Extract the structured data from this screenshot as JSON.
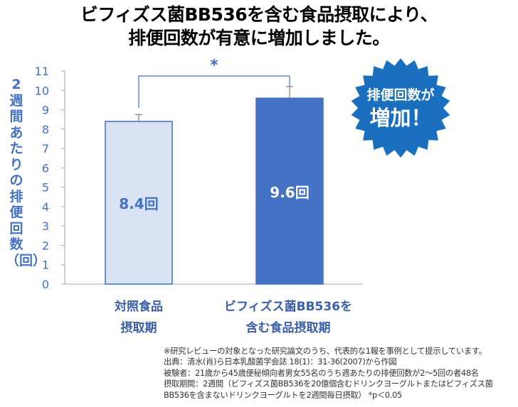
{
  "title_line1": "ビフィズス菌BB536を含む食品摂取により、",
  "title_line2": "排便回数が有意に増加しました。",
  "badge_line1": "排便回数が",
  "badge_line2": "増加！",
  "significance_mark": "*",
  "colors": {
    "control_fill": "#DAE3F3",
    "control_stroke": "#4472C4",
    "treatment_fill": "#4472C4",
    "badge": "#1A6FBF",
    "label_blue": "#4472C4",
    "axis": "#A6A6A6"
  },
  "chart_data": {
    "type": "bar",
    "categories": [
      "対照食品摂取期",
      "ビフィズス菌BB536を含む食品摂取期"
    ],
    "category_lines": [
      [
        "対照食品",
        "摂取期"
      ],
      [
        "ビフィズス菌BB536を",
        "含む食品摂取期"
      ]
    ],
    "values": [
      8.4,
      9.6
    ],
    "error_upper": [
      8.75,
      10.2
    ],
    "data_labels": [
      "8.4回",
      "9.6回"
    ],
    "ylabel": "2週間あたりの排便回数（回）",
    "ylim": [
      0,
      11
    ],
    "yticks": [
      0,
      1,
      2,
      3,
      4,
      5,
      6,
      7,
      8,
      9,
      10,
      11
    ],
    "grid": false
  },
  "notes": [
    "※研究レビューの対象となった研究論文のうち、代表的な1報を事例として提示しています。",
    "出典：清水(肖)ら日本乳酸菌学会誌 18(1)：31-36(2007)から作図",
    "被験者：21歳から45歳便秘傾向者男女55名のうち週あたりの排便回数が2〜5回の者48名",
    "摂取期間：2週間（ビフィズス菌BB536を20億個含むドリンクヨーグルトまたはビフィズス菌",
    "BB536を含まないドリンクヨーグルトを2週間毎日摂取） *p＜0.05"
  ]
}
